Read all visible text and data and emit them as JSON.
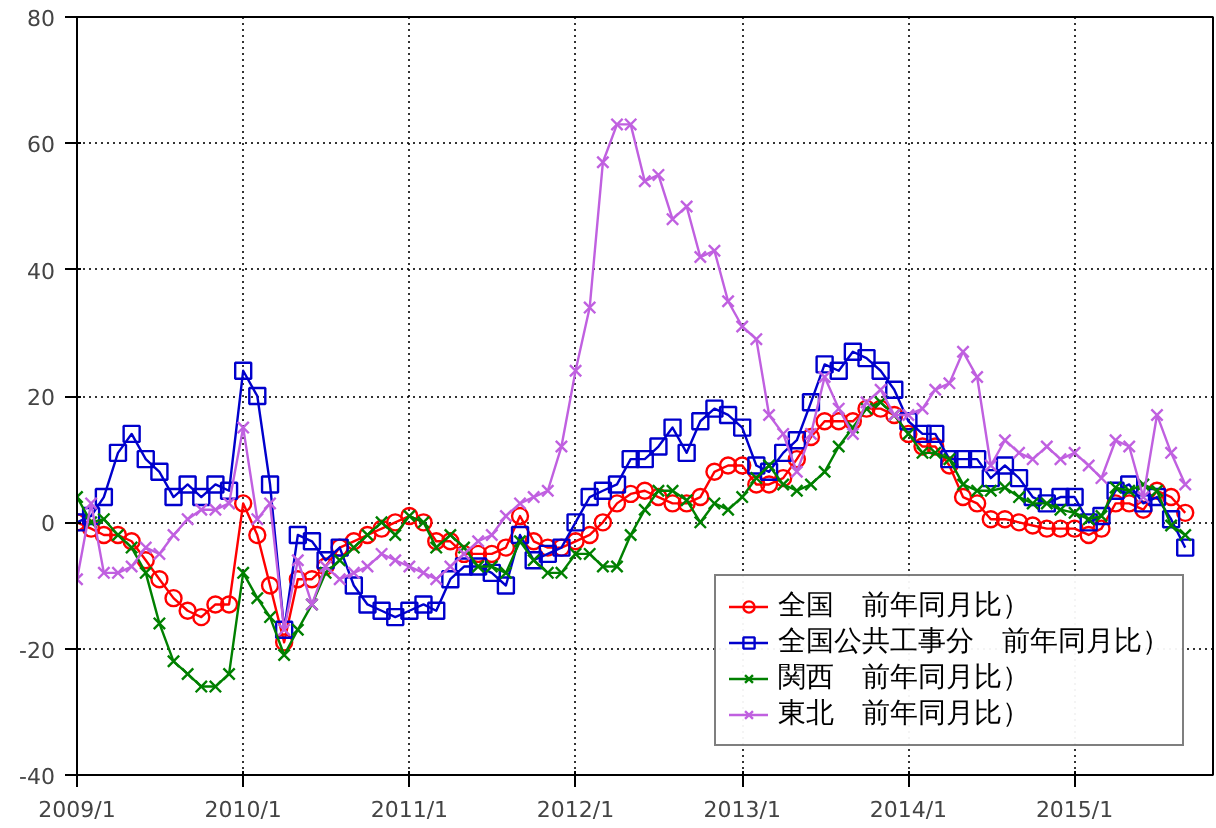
{
  "chart_data": {
    "type": "line",
    "x": [
      "2009-01",
      "2009-02",
      "2009-03",
      "2009-04",
      "2009-05",
      "2009-06",
      "2009-07",
      "2009-08",
      "2009-09",
      "2009-10",
      "2009-11",
      "2009-12",
      "2010-01",
      "2010-02",
      "2010-03",
      "2010-04",
      "2010-05",
      "2010-06",
      "2010-07",
      "2010-08",
      "2010-09",
      "2010-10",
      "2010-11",
      "2010-12",
      "2011-01",
      "2011-02",
      "2011-03",
      "2011-04",
      "2011-05",
      "2011-06",
      "2011-07",
      "2011-08",
      "2011-09",
      "2011-10",
      "2011-11",
      "2011-12",
      "2012-01",
      "2012-02",
      "2012-03",
      "2012-04",
      "2012-05",
      "2012-06",
      "2012-07",
      "2012-08",
      "2012-09",
      "2012-10",
      "2012-11",
      "2012-12",
      "2013-01",
      "2013-02",
      "2013-03",
      "2013-04",
      "2013-05",
      "2013-06",
      "2013-07",
      "2013-08",
      "2013-09",
      "2013-10",
      "2013-11",
      "2013-12",
      "2014-01",
      "2014-02",
      "2014-03",
      "2014-04",
      "2014-05",
      "2014-06",
      "2014-07",
      "2014-08",
      "2014-09",
      "2014-10",
      "2014-11",
      "2014-12",
      "2015-01",
      "2015-02",
      "2015-03",
      "2015-04",
      "2015-05",
      "2015-06",
      "2015-07",
      "2015-08",
      "2015-09"
    ],
    "ylim": [
      -40,
      80
    ],
    "yticks": [
      -40,
      -20,
      0,
      20,
      40,
      60,
      80
    ],
    "xlim": [
      "2009-01",
      "2015-11"
    ],
    "xticks": [
      {
        "value": "2009-01",
        "label": "2009/1"
      },
      {
        "value": "2010-01",
        "label": "2010/1"
      },
      {
        "value": "2011-01",
        "label": "2011/1"
      },
      {
        "value": "2012-01",
        "label": "2012/1"
      },
      {
        "value": "2013-01",
        "label": "2013/1"
      },
      {
        "value": "2014-01",
        "label": "2014/1"
      },
      {
        "value": "2015-01",
        "label": "2015/1"
      }
    ],
    "grid": true,
    "legend": "bottom right",
    "line_style": "solid",
    "series": [
      {
        "name": "全国　前年同月比）",
        "color": "#ff0000",
        "marker": "circle",
        "values": [
          0,
          -1,
          -2,
          -2,
          -3,
          -6,
          -9,
          -12,
          -14,
          -15,
          -13,
          -13,
          3,
          -2,
          -10,
          -19,
          -9,
          -9,
          -7,
          -4,
          -3,
          -2,
          -1,
          0,
          1,
          0,
          -3,
          -3,
          -5,
          -5,
          -5,
          -4,
          1,
          -3,
          -4,
          -4,
          -3,
          -2,
          0,
          3,
          4.5,
          5,
          4,
          3,
          3,
          4,
          8,
          9,
          9,
          6,
          6,
          7,
          10,
          13.5,
          16,
          16,
          16,
          18,
          18,
          17,
          14,
          12,
          12,
          9,
          4,
          3,
          0.5,
          0.5,
          0,
          -0.5,
          -1,
          -1,
          -1,
          -2,
          -1,
          3,
          3,
          2,
          5,
          4,
          1.5
        ]
      },
      {
        "name": "全国公共工事分　前年同月比）",
        "color": "#0000cc",
        "marker": "square",
        "values": [
          0,
          1,
          4,
          11,
          14,
          10,
          8,
          4,
          6,
          4,
          6,
          5,
          24,
          20,
          6,
          -17,
          -2,
          -3,
          -6,
          -4,
          -10,
          -13,
          -14,
          -15,
          -14,
          -13,
          -14,
          -9,
          -7,
          -7,
          -8,
          -10,
          -2,
          -6,
          -5,
          -4,
          0,
          4,
          5,
          6,
          10,
          10,
          12,
          15,
          11,
          16,
          18,
          17,
          15,
          9,
          8,
          11,
          13,
          19,
          25,
          24,
          27,
          26,
          24,
          21,
          16,
          14,
          14,
          10,
          10,
          10,
          7,
          9,
          7,
          4,
          3,
          4,
          4,
          0,
          1,
          5,
          6,
          3,
          4,
          0.5,
          -4
        ]
      },
      {
        "name": "関西　前年同月比）",
        "color": "#008000",
        "marker": "cross",
        "values": [
          4,
          0,
          0.5,
          -2,
          -4,
          -8,
          -16,
          -22,
          -24,
          -26,
          -26,
          -24,
          -8,
          -12,
          -15,
          -21,
          -17,
          -13,
          -8,
          -6,
          -4,
          -2,
          0,
          -2,
          1,
          0,
          -4,
          -2,
          -4,
          -7,
          -7,
          -8,
          -3,
          -6,
          -8,
          -8,
          -5,
          -5,
          -7,
          -7,
          -2,
          2,
          5,
          5,
          3.5,
          0,
          3,
          2,
          4,
          7,
          9,
          6,
          5,
          6,
          8,
          12,
          15,
          18,
          19,
          17,
          14,
          11,
          11,
          10,
          6,
          5,
          5,
          5.5,
          4,
          3,
          3,
          2,
          1.5,
          0.5,
          1,
          5.5,
          5,
          6,
          5,
          -0.5,
          -2
        ]
      },
      {
        "name": "東北　前年同月比）",
        "color": "#c060e0",
        "marker": "cross",
        "values": [
          -9,
          3,
          -8,
          -8,
          -7,
          -4,
          -5,
          -2,
          0.5,
          2,
          2,
          3,
          15,
          0.5,
          3,
          -17,
          -6,
          -13,
          -7,
          -9,
          -8,
          -7,
          -5,
          -6,
          -7,
          -8,
          -9,
          -7,
          -5,
          -3,
          -2,
          1,
          3,
          4,
          5,
          12,
          24,
          34,
          57,
          63,
          63,
          54,
          55,
          48,
          50,
          42,
          43,
          35,
          31,
          29,
          17,
          14,
          8,
          14,
          23,
          18,
          14,
          19,
          21,
          17,
          17,
          18,
          21,
          22,
          27,
          23,
          9,
          13,
          11,
          10,
          12,
          10,
          11,
          9,
          7,
          13,
          12,
          4,
          17,
          11,
          6
        ]
      }
    ]
  }
}
